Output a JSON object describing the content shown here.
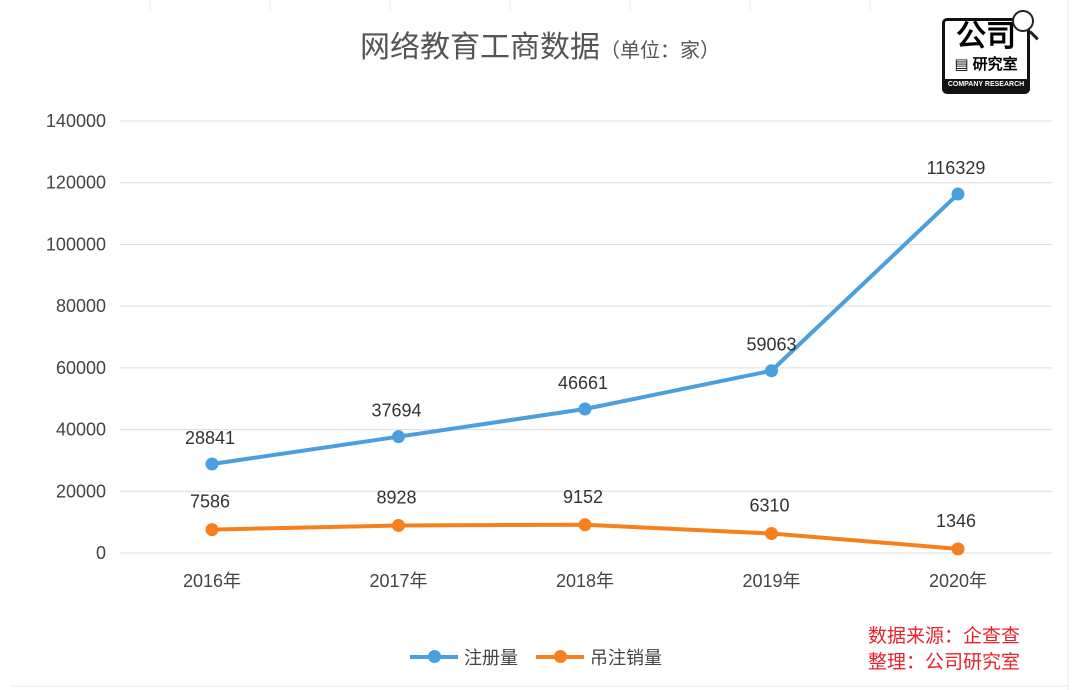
{
  "header": {
    "title": "网络教育工商数据",
    "unit": "（单位：家）"
  },
  "logo": {
    "line1": "公司",
    "line2": "研究室",
    "line3": "COMPANY RESEARCH"
  },
  "source": {
    "line1": "数据来源：企查查",
    "line2": "整理：公司研究室"
  },
  "colors": {
    "series1": "#4a9fdf",
    "series2": "#f6801e",
    "grid": "#dddddd",
    "source": "#e8232a"
  },
  "chart_data": {
    "type": "line",
    "title": "网络教育工商数据（单位：家）",
    "categories": [
      "2016年",
      "2017年",
      "2018年",
      "2019年",
      "2020年"
    ],
    "series": [
      {
        "name": "注册量",
        "values": [
          28841,
          37694,
          46661,
          59063,
          116329
        ]
      },
      {
        "name": "吊注销量",
        "values": [
          7586,
          8928,
          9152,
          6310,
          1346
        ]
      }
    ],
    "ylim": [
      0,
      140000
    ],
    "yticks": [
      0,
      20000,
      40000,
      60000,
      80000,
      100000,
      120000,
      140000
    ],
    "grid": true,
    "legend": "bottom"
  }
}
